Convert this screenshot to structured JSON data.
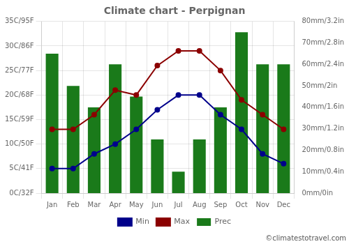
{
  "chart_data": {
    "type": "line",
    "title": "Climate chart - Perpignan",
    "annotation": "©climatestotravel.com",
    "categories": [
      "Jan",
      "Feb",
      "Mar",
      "Apr",
      "May",
      "Jun",
      "Jul",
      "Aug",
      "Sep",
      "Oct",
      "Nov",
      "Dec"
    ],
    "series": [
      {
        "name": "Prec",
        "type": "bar",
        "axis": "y2",
        "color": "#1a7a1a",
        "values": [
          65,
          50,
          40,
          60,
          45,
          25,
          10,
          25,
          40,
          75,
          60,
          60
        ]
      },
      {
        "name": "Min",
        "type": "line",
        "color": "#00008B",
        "marker": "circle",
        "values": [
          5,
          5,
          8,
          10,
          13,
          17,
          20,
          20,
          16,
          13,
          8,
          6
        ]
      },
      {
        "name": "Max",
        "type": "line",
        "color": "#8B0000",
        "marker": "circle",
        "values": [
          13,
          13,
          16,
          21,
          20,
          26,
          29,
          29,
          25,
          19,
          16,
          13
        ]
      }
    ],
    "ylim": [
      0,
      35
    ],
    "yticks": [
      {
        "value": 0,
        "label": "0C/32F"
      },
      {
        "value": 5,
        "label": "5C/41F"
      },
      {
        "value": 10,
        "label": "10C/50F"
      },
      {
        "value": 15,
        "label": "15C/59F"
      },
      {
        "value": 20,
        "label": "20C/68F"
      },
      {
        "value": 25,
        "label": "25C/77F"
      },
      {
        "value": 30,
        "label": "30C/86F"
      },
      {
        "value": 35,
        "label": "35C/95F"
      }
    ],
    "y2lim": [
      0,
      80
    ],
    "y2ticks": [
      {
        "value": 0,
        "label": "0mm/0in"
      },
      {
        "value": 10,
        "label": "10mm/0.4in"
      },
      {
        "value": 20,
        "label": "20mm/0.8in"
      },
      {
        "value": 30,
        "label": "30mm/1.2in"
      },
      {
        "value": 40,
        "label": "40mm/1.6in"
      },
      {
        "value": 50,
        "label": "50mm/2in"
      },
      {
        "value": 60,
        "label": "60mm/2.4in"
      },
      {
        "value": 70,
        "label": "70mm/2.8in"
      },
      {
        "value": 80,
        "label": "80mm/3.2in"
      }
    ],
    "grid": true,
    "legend": "bottom"
  }
}
